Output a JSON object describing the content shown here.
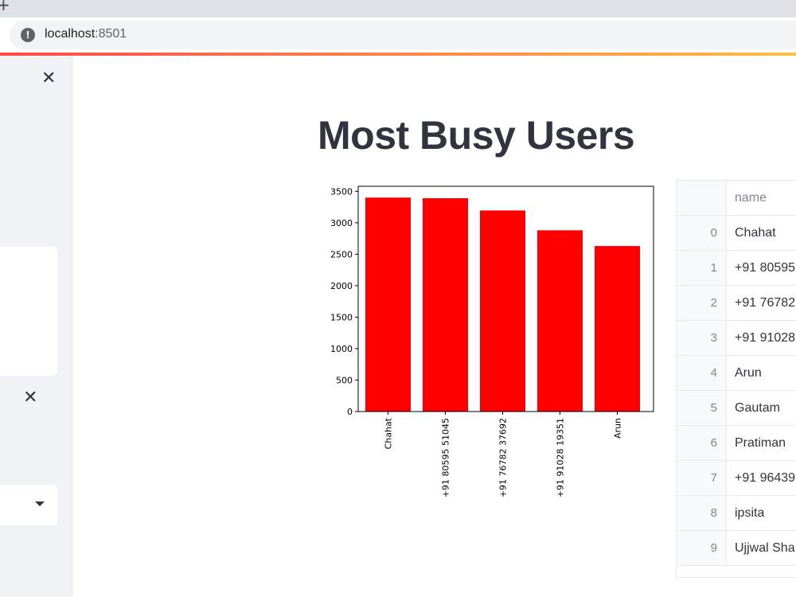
{
  "browser": {
    "url_host": "localhost",
    "url_port": ":8501"
  },
  "page": {
    "title": "Most Busy Users"
  },
  "chart_data": {
    "type": "bar",
    "categories": [
      "Chahat",
      "+91 80595 51045",
      "+91 76782 37692",
      "+91 91028 19351",
      "Arun"
    ],
    "values": [
      3400,
      3390,
      3195,
      2880,
      2630
    ],
    "yticks": [
      0,
      500,
      1000,
      1500,
      2000,
      2500,
      3000,
      3500
    ],
    "ylim": [
      0,
      3580
    ],
    "colors": {
      "bar": "#ff0000"
    },
    "title": "",
    "xlabel": "",
    "ylabel": ""
  },
  "table": {
    "columns": [
      "name"
    ],
    "rows": [
      {
        "index": "0",
        "name": "Chahat"
      },
      {
        "index": "1",
        "name": "+91 80595"
      },
      {
        "index": "2",
        "name": "+91 76782"
      },
      {
        "index": "3",
        "name": "+91 91028"
      },
      {
        "index": "4",
        "name": "Arun"
      },
      {
        "index": "5",
        "name": "Gautam"
      },
      {
        "index": "6",
        "name": "Pratiman"
      },
      {
        "index": "7",
        "name": "+91 96439"
      },
      {
        "index": "8",
        "name": "ipsita"
      },
      {
        "index": "9",
        "name": "Ujjwal Sha"
      }
    ]
  },
  "icons": {
    "info": "info-icon",
    "close": "close-icon",
    "caret": "caret-down-icon",
    "new_tab": "plus-icon"
  },
  "symbols": {
    "info": "!",
    "close": "✕",
    "plus": "+"
  }
}
